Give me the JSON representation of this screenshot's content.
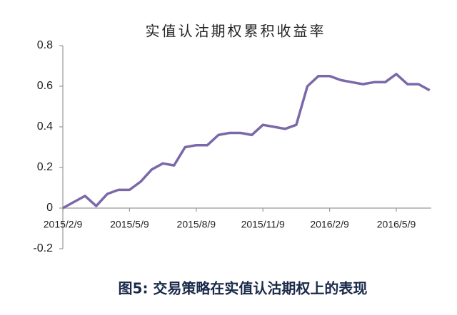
{
  "chart_data": {
    "type": "line",
    "title": "实值认沽期权累积收益率",
    "caption": "图5: 交易策略在实值认沽期权上的表现",
    "categories": [
      "2015/2/9",
      null,
      null,
      null,
      null,
      null,
      "2015/5/9",
      null,
      null,
      null,
      null,
      null,
      "2015/8/9",
      null,
      null,
      null,
      null,
      null,
      "2015/11/9",
      null,
      null,
      null,
      null,
      null,
      "2016/2/9",
      null,
      null,
      null,
      null,
      null,
      "2016/5/9",
      null,
      null,
      null
    ],
    "values": [
      0.0,
      0.03,
      0.06,
      0.01,
      0.07,
      0.09,
      0.09,
      0.13,
      0.19,
      0.22,
      0.21,
      0.3,
      0.31,
      0.31,
      0.36,
      0.37,
      0.37,
      0.36,
      0.41,
      0.4,
      0.39,
      0.41,
      0.6,
      0.65,
      0.65,
      0.63,
      0.62,
      0.61,
      0.62,
      0.62,
      0.66,
      0.61,
      0.61,
      0.58
    ],
    "color": "#7b68a8",
    "ylim": [
      -0.2,
      0.8
    ],
    "yticks": [
      -0.2,
      0,
      0.2,
      0.4,
      0.6,
      0.8
    ],
    "grid": false
  }
}
